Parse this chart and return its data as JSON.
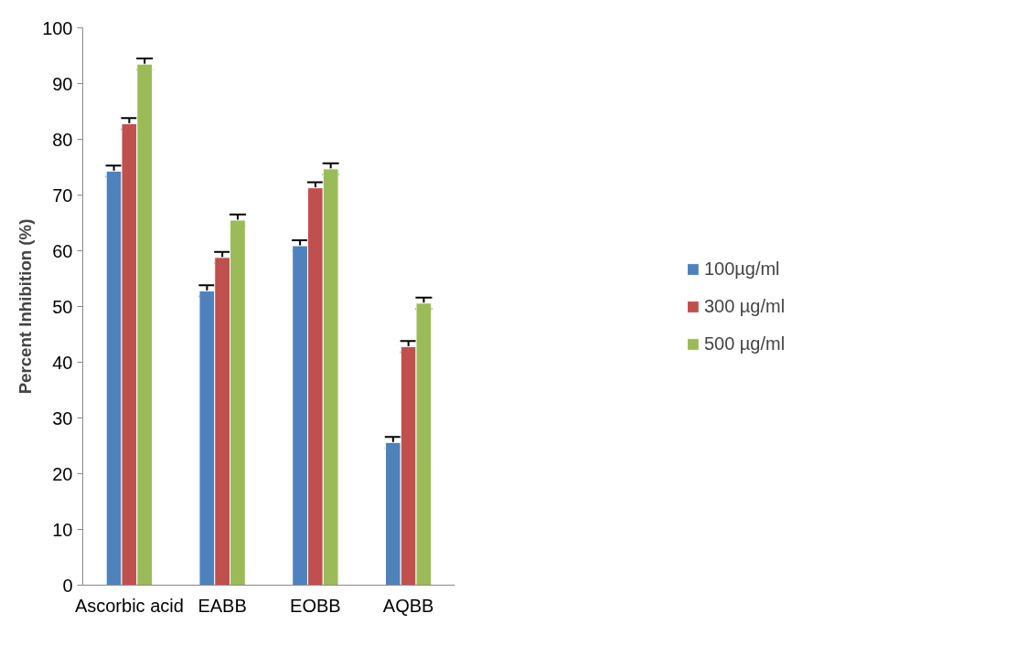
{
  "chart_data": {
    "type": "bar",
    "ylabel": "Percent Inhibition (%)",
    "categories": [
      "Ascorbic acid",
      "EABB",
      "EOBB",
      "AQBB"
    ],
    "series": [
      {
        "name": "100µg/ml",
        "color": "#4f81bd",
        "values": [
          74.3,
          52.8,
          60.9,
          25.6
        ],
        "errors": [
          1,
          1,
          1,
          1
        ]
      },
      {
        "name": "300 µg/ml",
        "color": "#c0504d",
        "values": [
          82.8,
          58.8,
          71.3,
          42.8
        ],
        "errors": [
          1,
          1,
          1,
          1
        ]
      },
      {
        "name": "500 µg/ml",
        "color": "#9bbb59",
        "values": [
          93.5,
          65.5,
          74.7,
          50.6
        ],
        "errors": [
          1,
          1,
          1,
          1
        ]
      }
    ],
    "ylim": [
      0,
      100
    ],
    "yticks": [
      0,
      10,
      20,
      30,
      40,
      50,
      60,
      70,
      80,
      90,
      100
    ],
    "grid": false,
    "legend": "right"
  }
}
